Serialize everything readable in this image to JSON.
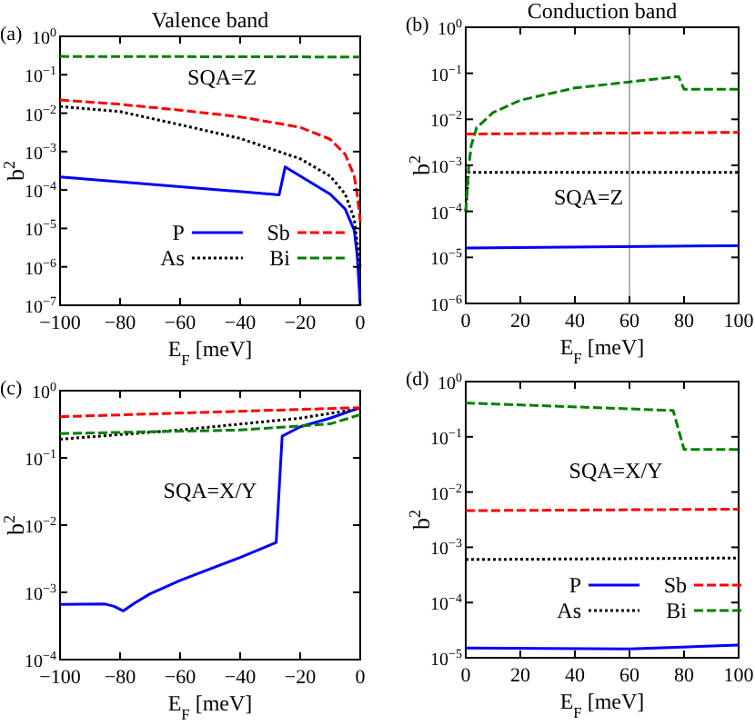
{
  "chart_data": [
    {
      "type": "line",
      "title": "Valence band",
      "xlabel": "E$_{F}$ [meV]",
      "ylabel": "b$^{2}$",
      "annotations": [
        "(a)",
        "SQA=Z"
      ],
      "log": "y",
      "legend": "bottom right",
      "xlim": [
        -100,
        0
      ],
      "xticks": [
        {
          "value": -100,
          "label": "−100"
        },
        {
          "value": -80,
          "label": "−80"
        },
        {
          "value": -60,
          "label": "−60"
        },
        {
          "value": -40,
          "label": "−40"
        },
        {
          "value": -20,
          "label": "−20"
        },
        0
      ],
      "ylim": [
        1e-07,
        1
      ],
      "yticks": [
        {
          "value": 1e-07,
          "label": "10$^{−7}$"
        },
        {
          "value": 1e-06,
          "label": "10$^{−6}$"
        },
        {
          "value": 1e-05,
          "label": "10$^{−5}$"
        },
        {
          "value": 0.0001,
          "label": "10$^{−4}$"
        },
        {
          "value": 0.001,
          "label": "10$^{−3}$"
        },
        {
          "value": 0.01,
          "label": "10$^{−2}$"
        },
        {
          "value": 0.1,
          "label": "10$^{−1}$"
        },
        {
          "value": 1,
          "label": "10$^{0}$"
        }
      ],
      "series": [
        {
          "name": "P",
          "color": "#0000ff",
          "line_style": "solid",
          "x": [
            -100,
            -27,
            -25,
            -20,
            -10,
            -5,
            -2,
            -1,
            0
          ],
          "values": [
            0.00022,
            7.5e-05,
            0.0004,
            0.00023,
            7.8e-05,
            3.2e-05,
            9e-06,
            2e-06,
            1e-07
          ]
        },
        {
          "name": "As",
          "color": "#000000",
          "line_style": "dotted",
          "x": [
            -100,
            -80,
            -60,
            -40,
            -20,
            -10,
            -5,
            -2,
            0
          ],
          "values": [
            0.015,
            0.011,
            0.005,
            0.0022,
            0.00065,
            0.00023,
            7.8e-05,
            1.8e-05,
            1e-06
          ]
        },
        {
          "name": "Sb",
          "color": "#ff0000",
          "line_style": "dashed",
          "x": [
            -100,
            -80,
            -60,
            -40,
            -20,
            -10,
            -5,
            -2,
            -1,
            0
          ],
          "values": [
            0.022,
            0.017,
            0.012,
            0.008,
            0.0043,
            0.0021,
            0.00085,
            0.00023,
            7.8e-05,
            1.5e-05
          ]
        },
        {
          "name": "Bi",
          "color": "#008000",
          "line_style": "dashed",
          "x": [
            -100,
            0
          ],
          "values": [
            0.3,
            0.29
          ]
        }
      ]
    },
    {
      "type": "line",
      "title": "Conduction band",
      "xlabel": "E$_{F}$ [meV]",
      "ylabel": "b$^{2}$",
      "annotations": [
        "(b)",
        "SQA=Z"
      ],
      "log": "y",
      "xlim": [
        0,
        100
      ],
      "xticks": [
        0,
        20,
        40,
        60,
        80,
        100
      ],
      "ylim": [
        1e-06,
        1
      ],
      "yticks": [
        {
          "value": 1e-06,
          "label": "10$^{−6}$"
        },
        {
          "value": 1e-05,
          "label": "10$^{−5}$"
        },
        {
          "value": 0.0001,
          "label": "10$^{−4}$"
        },
        {
          "value": 0.001,
          "label": "10$^{−3}$"
        },
        {
          "value": 0.01,
          "label": "10$^{−2}$"
        },
        {
          "value": 0.1,
          "label": "10$^{−1}$"
        },
        {
          "value": 1,
          "label": "10$^{0}$"
        }
      ],
      "ref_lines": [
        {
          "axis": "x",
          "value": 60,
          "color": "#b0b0b0"
        }
      ],
      "series": [
        {
          "color": "#0000ff",
          "line_style": "solid",
          "x": [
            0,
            100
          ],
          "values": [
            1.6e-05,
            1.8e-05
          ]
        },
        {
          "color": "#000000",
          "line_style": "dotted",
          "x": [
            0,
            1,
            100
          ],
          "values": [
            0.0001,
            0.0007,
            0.0007
          ]
        },
        {
          "color": "#ff0000",
          "line_style": "dashed",
          "x": [
            0,
            100
          ],
          "values": [
            0.0048,
            0.0052
          ]
        },
        {
          "color": "#008000",
          "line_style": "dashed",
          "x": [
            0,
            1,
            2,
            4,
            10,
            20,
            40,
            60,
            78,
            80,
            100
          ],
          "values": [
            0.0001,
            0.0008,
            0.0027,
            0.0066,
            0.014,
            0.026,
            0.048,
            0.065,
            0.085,
            0.045,
            0.045
          ]
        }
      ]
    },
    {
      "type": "line",
      "xlabel": "E$_{F}$ [meV]",
      "ylabel": "b$^{2}$",
      "annotations": [
        "(c)",
        "SQA=X/Y"
      ],
      "log": "y",
      "xlim": [
        -100,
        0
      ],
      "xticks": [
        {
          "value": -100,
          "label": "−100"
        },
        {
          "value": -80,
          "label": "−80"
        },
        {
          "value": -60,
          "label": "−60"
        },
        {
          "value": -40,
          "label": "−40"
        },
        {
          "value": -20,
          "label": "−20"
        },
        0
      ],
      "ylim": [
        0.0001,
        1
      ],
      "yticks": [
        {
          "value": 0.0001,
          "label": "10$^{−4}$"
        },
        {
          "value": 0.001,
          "label": "10$^{−3}$"
        },
        {
          "value": 0.01,
          "label": "10$^{−2}$"
        },
        {
          "value": 0.1,
          "label": "10$^{−1}$"
        },
        {
          "value": 1,
          "label": "10$^{0}$"
        }
      ],
      "series": [
        {
          "color": "#0000ff",
          "line_style": "solid",
          "x": [
            -100,
            -85,
            -82,
            -79,
            -75,
            -70,
            -60,
            -40,
            -28,
            -26,
            -20,
            -10,
            0
          ],
          "values": [
            0.00066,
            0.00067,
            0.00062,
            0.00053,
            0.0007,
            0.00095,
            0.0015,
            0.0033,
            0.0055,
            0.21,
            0.29,
            0.39,
            0.56
          ]
        },
        {
          "color": "#000000",
          "line_style": "dotted",
          "x": [
            -100,
            -60,
            -20,
            0
          ],
          "values": [
            0.19,
            0.26,
            0.39,
            0.54
          ]
        },
        {
          "color": "#ff0000",
          "line_style": "dashed",
          "x": [
            -100,
            0
          ],
          "values": [
            0.41,
            0.56
          ]
        },
        {
          "color": "#008000",
          "line_style": "dashed",
          "x": [
            -100,
            -40,
            -10,
            0
          ],
          "values": [
            0.23,
            0.26,
            0.32,
            0.44
          ]
        }
      ]
    },
    {
      "type": "line",
      "xlabel": "E$_{F}$ [meV]",
      "ylabel": "b$^{2}$",
      "annotations": [
        "(d)",
        "SQA=X/Y"
      ],
      "log": "y",
      "legend": "bottom right",
      "xlim": [
        0,
        100
      ],
      "xticks": [
        0,
        20,
        40,
        60,
        80,
        100
      ],
      "ylim": [
        1e-05,
        1
      ],
      "yticks": [
        {
          "value": 1e-05,
          "label": "10$^{−5}$"
        },
        {
          "value": 0.0001,
          "label": "10$^{−4}$"
        },
        {
          "value": 0.001,
          "label": "10$^{−3}$"
        },
        {
          "value": 0.01,
          "label": "10$^{−2}$"
        },
        {
          "value": 0.1,
          "label": "10$^{−1}$"
        },
        {
          "value": 1,
          "label": "10$^{0}$"
        }
      ],
      "series": [
        {
          "name": "P",
          "color": "#0000ff",
          "line_style": "solid",
          "x": [
            0,
            60,
            100
          ],
          "values": [
            1.5e-05,
            1.45e-05,
            1.7e-05
          ]
        },
        {
          "name": "As",
          "color": "#000000",
          "line_style": "dotted",
          "x": [
            0,
            100
          ],
          "values": [
            0.0006,
            0.00064
          ]
        },
        {
          "name": "Sb",
          "color": "#ff0000",
          "line_style": "dashed",
          "x": [
            0,
            100
          ],
          "values": [
            0.0046,
            0.0049
          ]
        },
        {
          "name": "Bi",
          "color": "#008000",
          "line_style": "dashed",
          "x": [
            0,
            76,
            80,
            100
          ],
          "values": [
            0.41,
            0.3,
            0.059,
            0.059
          ]
        }
      ]
    }
  ]
}
